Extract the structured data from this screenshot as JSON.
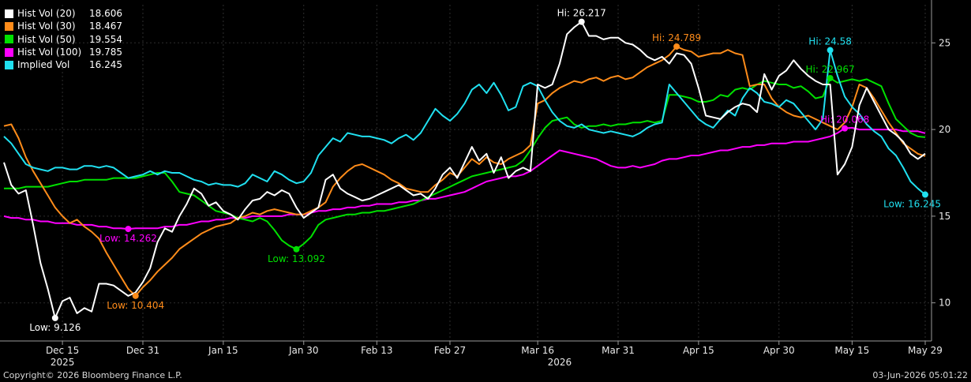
{
  "chart_data": {
    "type": "line",
    "ylim": [
      7.8,
      27.2
    ],
    "y_ticks": [
      10,
      15,
      20,
      25
    ],
    "x_range": [
      0,
      126
    ],
    "x_ticks": [
      {
        "label": "Dec 15",
        "i": 8
      },
      {
        "label": "Dec 31",
        "i": 19
      },
      {
        "label": "Jan 15",
        "i": 30
      },
      {
        "label": "Jan 30",
        "i": 41
      },
      {
        "label": "Feb 13",
        "i": 51
      },
      {
        "label": "Feb 27",
        "i": 61
      },
      {
        "label": "Mar 16",
        "i": 73
      },
      {
        "label": "Mar 31",
        "i": 84
      },
      {
        "label": "Apr 15",
        "i": 95
      },
      {
        "label": "Apr 30",
        "i": 106
      },
      {
        "label": "May 15",
        "i": 116
      },
      {
        "label": "May 29",
        "i": 126
      }
    ],
    "year_labels": [
      {
        "label": "2025",
        "i": 8
      },
      {
        "label": "2026",
        "i": 76
      }
    ],
    "series": [
      {
        "name": "Hist Vol (20)",
        "last": "18.606",
        "color": "#ffffff",
        "values": [
          18.1,
          16.8,
          16.3,
          16.5,
          14.5,
          12.3,
          10.8,
          9.126,
          10.1,
          10.3,
          9.4,
          9.7,
          9.5,
          11.1,
          11.1,
          11.0,
          10.7,
          10.4,
          10.6,
          11.2,
          12.0,
          13.5,
          14.3,
          14.1,
          15.0,
          15.7,
          16.6,
          16.3,
          15.6,
          15.8,
          15.3,
          15.1,
          14.8,
          15.4,
          15.9,
          16.0,
          16.4,
          16.2,
          16.5,
          16.3,
          15.5,
          14.9,
          15.2,
          15.5,
          17.1,
          17.4,
          16.6,
          16.3,
          16.1,
          15.9,
          16.0,
          16.2,
          16.4,
          16.6,
          16.8,
          16.5,
          16.2,
          16.3,
          16.0,
          16.6,
          17.4,
          17.8,
          17.2,
          18.1,
          19.0,
          18.2,
          18.6,
          17.5,
          18.4,
          17.2,
          17.6,
          17.8,
          17.6,
          22.6,
          22.4,
          22.6,
          23.8,
          25.5,
          25.9,
          26.217,
          25.4,
          25.4,
          25.2,
          25.3,
          25.3,
          25.0,
          24.9,
          24.6,
          24.2,
          24.0,
          24.2,
          23.8,
          24.4,
          24.3,
          23.8,
          22.4,
          20.8,
          20.7,
          20.6,
          21.0,
          21.3,
          21.5,
          21.4,
          21.0,
          23.2,
          22.3,
          23.1,
          23.4,
          24.0,
          23.5,
          23.1,
          22.8,
          22.6,
          22.6,
          17.4,
          18.0,
          19.0,
          21.4,
          22.4,
          21.6,
          20.8,
          20.0,
          19.7,
          19.3,
          18.6,
          18.3,
          18.606
        ]
      },
      {
        "name": "Hist Vol (30)",
        "last": "18.467",
        "color": "#ff8c1a",
        "values": [
          20.2,
          20.3,
          19.5,
          18.4,
          17.6,
          16.9,
          16.2,
          15.5,
          15.0,
          14.6,
          14.8,
          14.4,
          14.1,
          13.7,
          12.9,
          12.2,
          11.5,
          10.8,
          10.404,
          10.9,
          11.3,
          11.8,
          12.2,
          12.6,
          13.1,
          13.4,
          13.7,
          14.0,
          14.2,
          14.4,
          14.5,
          14.6,
          14.9,
          15.0,
          15.2,
          15.1,
          15.3,
          15.4,
          15.3,
          15.2,
          15.1,
          15.1,
          15.3,
          15.5,
          15.8,
          16.7,
          17.2,
          17.6,
          17.9,
          18.0,
          17.8,
          17.6,
          17.4,
          17.1,
          16.9,
          16.6,
          16.5,
          16.4,
          16.4,
          16.8,
          17.1,
          17.5,
          17.3,
          17.8,
          18.3,
          18.0,
          18.4,
          18.1,
          18.0,
          18.3,
          18.5,
          18.7,
          19.1,
          21.5,
          21.7,
          22.1,
          22.4,
          22.6,
          22.8,
          22.7,
          22.9,
          23.0,
          22.8,
          23.0,
          23.1,
          22.9,
          23.0,
          23.3,
          23.6,
          23.8,
          24.0,
          24.3,
          24.789,
          24.6,
          24.5,
          24.2,
          24.3,
          24.4,
          24.4,
          24.6,
          24.4,
          24.3,
          22.5,
          22.6,
          22.6,
          21.8,
          21.3,
          21.0,
          20.8,
          20.7,
          20.8,
          20.6,
          20.4,
          20.2,
          20.0,
          20.4,
          21.3,
          22.6,
          22.4,
          21.8,
          21.1,
          20.4,
          19.8,
          19.2,
          18.9,
          18.6,
          18.467
        ]
      },
      {
        "name": "Hist Vol (50)",
        "last": "19.554",
        "color": "#00e000",
        "values": [
          16.6,
          16.6,
          16.6,
          16.7,
          16.7,
          16.7,
          16.7,
          16.8,
          16.9,
          17.0,
          17.0,
          17.1,
          17.1,
          17.1,
          17.1,
          17.2,
          17.2,
          17.2,
          17.2,
          17.3,
          17.4,
          17.5,
          17.5,
          17.0,
          16.4,
          16.3,
          16.2,
          15.9,
          15.6,
          15.3,
          15.2,
          15.1,
          14.9,
          14.8,
          14.7,
          14.9,
          14.7,
          14.2,
          13.6,
          13.3,
          13.092,
          13.4,
          13.8,
          14.5,
          14.8,
          14.9,
          15.0,
          15.1,
          15.1,
          15.2,
          15.2,
          15.3,
          15.3,
          15.4,
          15.5,
          15.6,
          15.7,
          15.9,
          16.1,
          16.3,
          16.5,
          16.7,
          16.9,
          17.1,
          17.3,
          17.4,
          17.5,
          17.6,
          17.7,
          17.8,
          17.9,
          18.2,
          18.8,
          19.5,
          20.1,
          20.5,
          20.6,
          20.7,
          20.3,
          20.1,
          20.2,
          20.2,
          20.3,
          20.2,
          20.3,
          20.3,
          20.4,
          20.4,
          20.5,
          20.4,
          20.5,
          22.0,
          22.0,
          21.9,
          21.8,
          21.6,
          21.6,
          21.7,
          22.0,
          21.9,
          22.3,
          22.4,
          22.3,
          22.6,
          22.8,
          22.7,
          22.6,
          22.6,
          22.4,
          22.5,
          22.2,
          21.8,
          21.9,
          22.967,
          22.7,
          22.8,
          22.9,
          22.8,
          22.9,
          22.7,
          22.5,
          21.5,
          20.6,
          20.2,
          19.8,
          19.6,
          19.554
        ]
      },
      {
        "name": "Hist Vol (100)",
        "last": "19.785",
        "color": "#ff00ff",
        "values": [
          15.0,
          14.9,
          14.9,
          14.8,
          14.8,
          14.7,
          14.7,
          14.6,
          14.6,
          14.6,
          14.5,
          14.5,
          14.5,
          14.4,
          14.4,
          14.3,
          14.3,
          14.262,
          14.3,
          14.3,
          14.3,
          14.3,
          14.4,
          14.4,
          14.5,
          14.5,
          14.6,
          14.7,
          14.7,
          14.8,
          14.8,
          14.9,
          14.9,
          14.9,
          15.0,
          15.0,
          15.0,
          15.0,
          15.0,
          15.1,
          15.1,
          15.1,
          15.2,
          15.3,
          15.3,
          15.4,
          15.4,
          15.5,
          15.5,
          15.6,
          15.6,
          15.7,
          15.7,
          15.7,
          15.8,
          15.8,
          15.9,
          15.9,
          16.0,
          16.0,
          16.1,
          16.2,
          16.3,
          16.4,
          16.6,
          16.8,
          17.0,
          17.1,
          17.2,
          17.3,
          17.3,
          17.4,
          17.6,
          17.9,
          18.2,
          18.5,
          18.8,
          18.7,
          18.6,
          18.5,
          18.4,
          18.3,
          18.1,
          17.9,
          17.8,
          17.8,
          17.9,
          17.8,
          17.9,
          18.0,
          18.2,
          18.3,
          18.3,
          18.4,
          18.5,
          18.5,
          18.6,
          18.7,
          18.8,
          18.8,
          18.9,
          19.0,
          19.0,
          19.1,
          19.1,
          19.2,
          19.2,
          19.2,
          19.3,
          19.3,
          19.3,
          19.4,
          19.5,
          19.6,
          19.8,
          20.068,
          20.1,
          20.0,
          20.0,
          20.0,
          20.0,
          20.0,
          20.0,
          19.9,
          19.9,
          19.9,
          19.785
        ]
      },
      {
        "name": "Implied Vol",
        "last": "16.245",
        "color": "#20e0f0",
        "values": [
          19.6,
          19.2,
          18.6,
          18.0,
          17.8,
          17.7,
          17.6,
          17.8,
          17.8,
          17.7,
          17.7,
          17.9,
          17.9,
          17.8,
          17.9,
          17.8,
          17.5,
          17.2,
          17.3,
          17.4,
          17.6,
          17.4,
          17.6,
          17.5,
          17.5,
          17.3,
          17.1,
          17.0,
          16.8,
          16.9,
          16.8,
          16.8,
          16.7,
          16.9,
          17.4,
          17.2,
          17.0,
          17.6,
          17.4,
          17.1,
          16.9,
          17.0,
          17.5,
          18.5,
          19.0,
          19.5,
          19.3,
          19.8,
          19.7,
          19.6,
          19.6,
          19.5,
          19.4,
          19.2,
          19.5,
          19.7,
          19.4,
          19.8,
          20.5,
          21.2,
          20.8,
          20.5,
          20.9,
          21.5,
          22.3,
          22.6,
          22.1,
          22.7,
          22.0,
          21.1,
          21.3,
          22.5,
          22.7,
          22.5,
          21.7,
          21.0,
          20.5,
          20.2,
          20.1,
          20.3,
          20.0,
          19.9,
          19.8,
          19.9,
          19.8,
          19.7,
          19.6,
          19.8,
          20.1,
          20.3,
          20.4,
          22.6,
          22.1,
          21.6,
          21.1,
          20.6,
          20.3,
          20.1,
          20.6,
          21.1,
          20.8,
          21.8,
          22.4,
          22.1,
          21.6,
          21.5,
          21.3,
          21.7,
          21.5,
          21.0,
          20.5,
          20.0,
          20.6,
          24.58,
          23.1,
          21.9,
          21.3,
          20.9,
          20.3,
          19.9,
          19.6,
          18.9,
          18.5,
          17.8,
          17.0,
          16.6,
          16.245
        ]
      }
    ],
    "annotations": [
      {
        "label": "Hi: 26.217",
        "series": 0,
        "i": 79,
        "y": 26.217,
        "pos": "above"
      },
      {
        "label": "Low: 9.126",
        "series": 0,
        "i": 7,
        "y": 9.126,
        "pos": "below"
      },
      {
        "label": "Hi: 24.789",
        "series": 1,
        "i": 92,
        "y": 24.789,
        "pos": "above"
      },
      {
        "label": "Low: 10.404",
        "series": 1,
        "i": 18,
        "y": 10.404,
        "pos": "below"
      },
      {
        "label": "Hi: 22.967",
        "series": 2,
        "i": 113,
        "y": 22.967,
        "pos": "above"
      },
      {
        "label": "Low: 13.092",
        "series": 2,
        "i": 40,
        "y": 13.092,
        "pos": "below"
      },
      {
        "label": "Hi: 20.068",
        "series": 3,
        "i": 115,
        "y": 20.068,
        "pos": "above"
      },
      {
        "label": "Low: 14.262",
        "series": 3,
        "i": 17,
        "y": 14.262,
        "pos": "below"
      },
      {
        "label": "Hi: 24.58",
        "series": 4,
        "i": 113,
        "y": 24.58,
        "pos": "above"
      },
      {
        "label": "Low: 16.245",
        "series": 4,
        "i": 126,
        "y": 16.245,
        "pos": "below"
      }
    ]
  },
  "footer": {
    "copyright": "Copyright© 2026 Bloomberg Finance L.P.",
    "timestamp": "03-Jun-2026 05:01:22"
  }
}
